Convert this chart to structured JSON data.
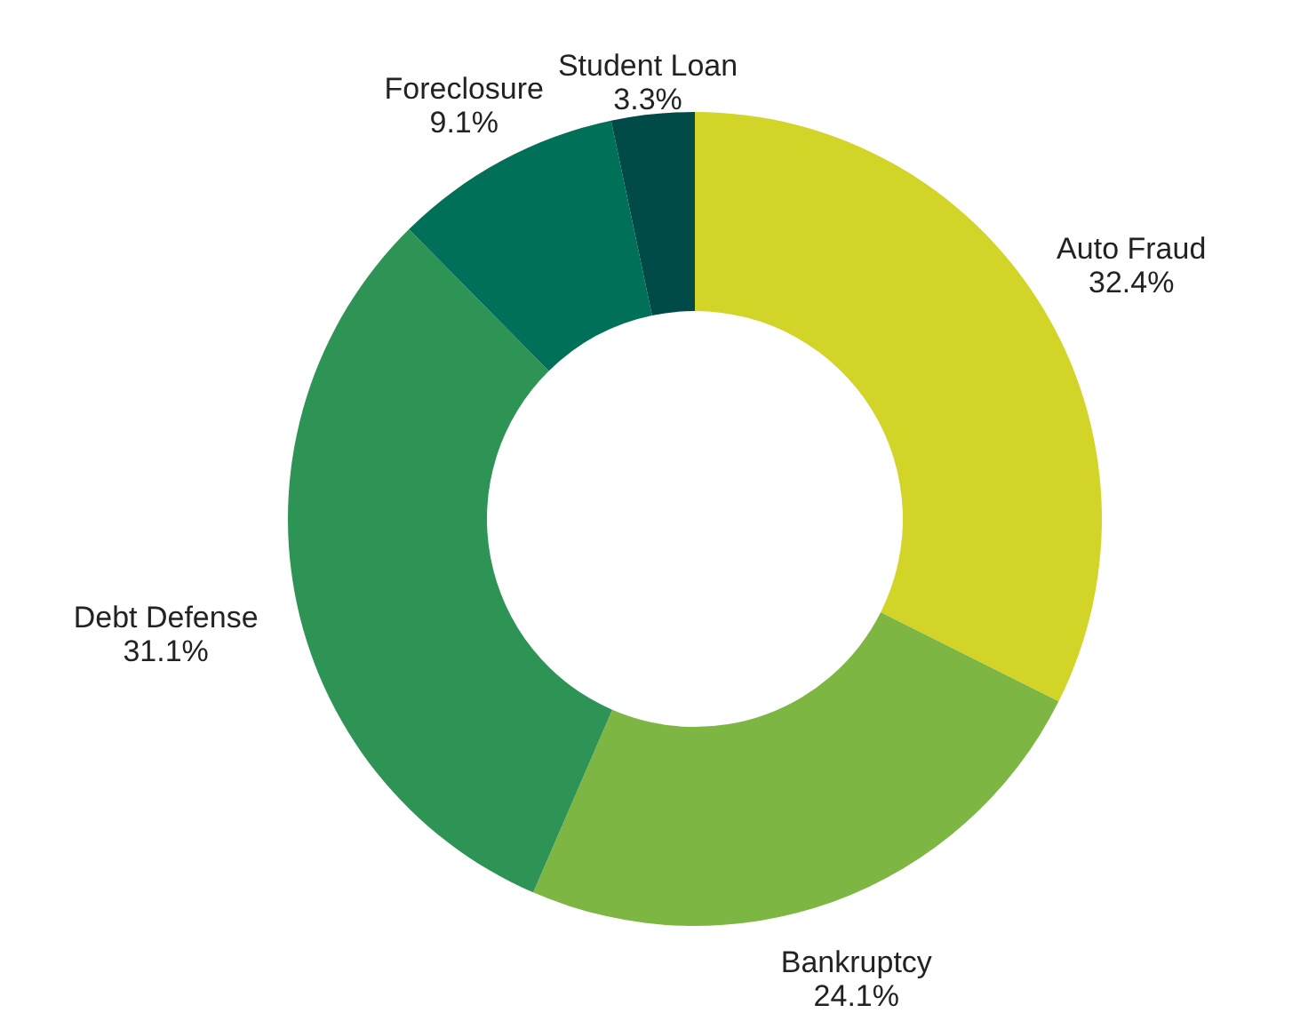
{
  "chart_data": {
    "type": "donut",
    "categories": [
      "Auto Fraud",
      "Bankruptcy",
      "Debt Defense",
      "Foreclosure",
      "Student Loan"
    ],
    "values": [
      32.4,
      24.1,
      31.1,
      9.1,
      3.3
    ],
    "value_labels": [
      "32.4%",
      "24.1%",
      "31.1%",
      "9.1%",
      "3.3%"
    ],
    "colors": [
      "#d2d428",
      "#7db642",
      "#2e9455",
      "#007058",
      "#004a47"
    ]
  }
}
